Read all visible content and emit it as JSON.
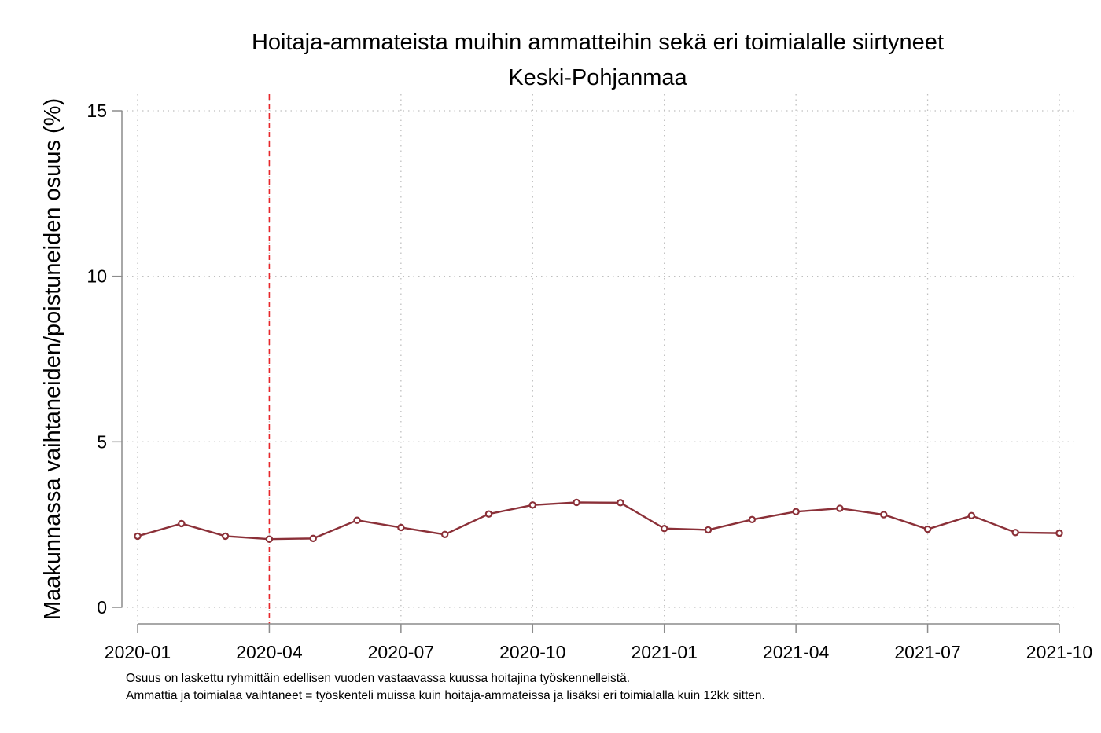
{
  "chart_data": {
    "type": "line",
    "title": "Hoitaja-ammateista muihin ammatteihin sekä eri toimialalle siirtyneet",
    "subtitle": "Keski-Pohjanmaa",
    "ylabel": "Maakunnassa vaihtaneiden/poistuneiden osuus (%)",
    "xlabel": "",
    "ylim": [
      0,
      15
    ],
    "yticks": [
      "0",
      "5",
      "10",
      "15"
    ],
    "xtick_labels": [
      "2020-01",
      "2020-04",
      "2020-07",
      "2020-10",
      "2021-01",
      "2021-04",
      "2021-07",
      "2021-10"
    ],
    "xtick_index": [
      0,
      3,
      6,
      9,
      12,
      15,
      18,
      21
    ],
    "x": [
      "2020-01",
      "2020-02",
      "2020-03",
      "2020-04",
      "2020-05",
      "2020-06",
      "2020-07",
      "2020-08",
      "2020-09",
      "2020-10",
      "2020-11",
      "2020-12",
      "2021-01",
      "2021-02",
      "2021-03",
      "2021-04",
      "2021-05",
      "2021-06",
      "2021-07",
      "2021-08",
      "2021-09",
      "2021-10"
    ],
    "series": [
      {
        "values": [
          2.15,
          2.53,
          2.15,
          2.06,
          2.08,
          2.63,
          2.41,
          2.2,
          2.82,
          3.09,
          3.17,
          3.16,
          2.38,
          2.34,
          2.65,
          2.89,
          2.99,
          2.8,
          2.36,
          2.77,
          2.26,
          2.24
        ]
      }
    ],
    "reference_line": {
      "x": "2020-04",
      "color": "#e8262a",
      "style": "dashed"
    },
    "grid": true,
    "colors": {
      "line": "#8b3038",
      "axis": "#8c8c8c",
      "grid": "#bfbfbf"
    },
    "notes": [
      "Osuus on laskettu ryhmittäin edellisen vuoden vastaavassa kuussa hoitajina työskennelleistä.",
      "Ammattia ja toimialaa vaihtaneet = työskenteli muissa kuin hoitaja-ammateissa ja lisäksi eri toimialalla kuin 12kk sitten."
    ]
  }
}
